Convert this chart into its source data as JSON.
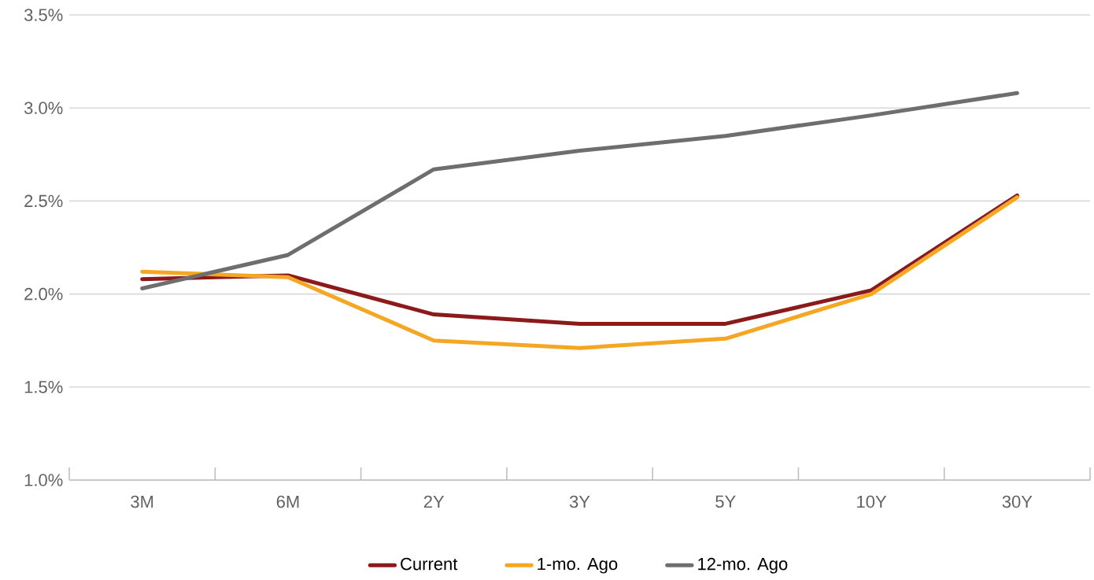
{
  "chart_data": {
    "type": "line",
    "categories": [
      "3M",
      "6M",
      "2Y",
      "3Y",
      "5Y",
      "10Y",
      "30Y"
    ],
    "series": [
      {
        "name": "Current",
        "color": "#8b1a1a",
        "values": [
          2.08,
          2.1,
          1.89,
          1.84,
          1.84,
          2.02,
          2.53
        ]
      },
      {
        "name": "1-mo. Ago",
        "color": "#f5a623",
        "values": [
          2.12,
          2.09,
          1.75,
          1.71,
          1.76,
          2.0,
          2.52
        ]
      },
      {
        "name": "12-mo. Ago",
        "color": "#6e6e6e",
        "values": [
          2.03,
          2.21,
          2.67,
          2.77,
          2.85,
          2.96,
          3.08
        ]
      }
    ],
    "ylim": [
      1.0,
      3.5
    ],
    "yticks": [
      {
        "value": 1.0,
        "label": "1.0%"
      },
      {
        "value": 1.5,
        "label": "1.5%"
      },
      {
        "value": 2.0,
        "label": "2.0%"
      },
      {
        "value": 2.5,
        "label": "2.5%"
      },
      {
        "value": 3.0,
        "label": "3.0%"
      },
      {
        "value": 3.5,
        "label": "3.5%"
      }
    ],
    "grid": "y",
    "legend": "bottom",
    "marker": "none",
    "line_style": "solid"
  }
}
